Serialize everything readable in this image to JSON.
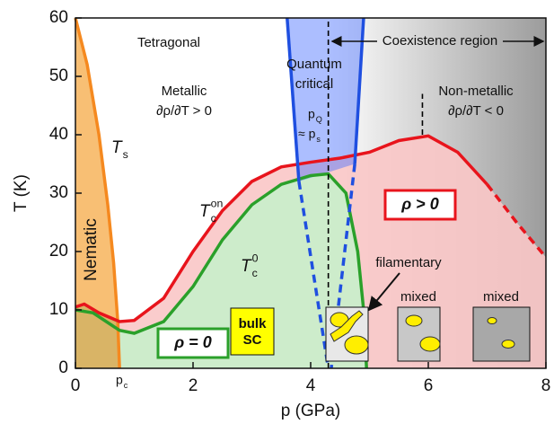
{
  "chart_data": {
    "type": "line",
    "x_label": "p (GPa)",
    "y_label": "T (K)",
    "xlim": [
      0,
      8
    ],
    "ylim": [
      0,
      60
    ],
    "xticks": [
      0,
      2,
      4,
      6,
      8
    ],
    "yticks": [
      0,
      10,
      20,
      30,
      40,
      50,
      60
    ],
    "series": [
      {
        "color": "#f5891f",
        "x": [
          0,
          0.2,
          0.4,
          0.55,
          0.65,
          0.72,
          0.75
        ],
        "values": [
          60,
          52,
          40,
          28,
          18,
          8,
          0
        ]
      },
      {
        "color": "#e8141c",
        "x": [
          0,
          0.15,
          0.4,
          0.75,
          1,
          1.5,
          2,
          2.5,
          3,
          3.5,
          4,
          4.5,
          5,
          5.5,
          6,
          6.5,
          7
        ],
        "values": [
          10.5,
          11,
          9.5,
          8,
          8.2,
          12,
          20,
          27,
          32,
          34.5,
          35.3,
          36,
          37,
          39,
          39.8,
          37,
          31.5
        ]
      },
      {
        "color": "#e8141c",
        "dash": true,
        "x": [
          7,
          7.5,
          8
        ],
        "values": [
          31.5,
          25,
          19
        ]
      },
      {
        "color": "#2aa02a",
        "x": [
          0,
          0.3,
          0.75,
          1,
          1.5,
          2,
          2.5,
          3,
          3.5,
          4,
          4.3,
          4.6,
          4.8,
          4.9,
          4.95
        ],
        "values": [
          10,
          9.5,
          6.5,
          6,
          8,
          14,
          22,
          28,
          31.5,
          33,
          33.3,
          30,
          20,
          10,
          0
        ]
      },
      {
        "color": "#1f4fe0",
        "x": [
          3.6,
          3.8
        ],
        "values": [
          60,
          32
        ]
      },
      {
        "color": "#1f4fe0",
        "dash": true,
        "x": [
          3.8,
          4.3
        ],
        "values": [
          32,
          0
        ]
      },
      {
        "color": "#1f4fe0",
        "x": [
          4.9,
          4.75
        ],
        "values": [
          60,
          35
        ]
      },
      {
        "color": "#1f4fe0",
        "dash": true,
        "x": [
          4.75,
          4.35
        ],
        "values": [
          35,
          0
        ]
      },
      {
        "color": "#000000",
        "dash": true,
        "x": [
          4.3,
          4.3
        ],
        "values": [
          0,
          60
        ]
      },
      {
        "color": "#000000",
        "dash": true,
        "x": [
          5.9,
          5.9
        ],
        "values": [
          40,
          47
        ]
      }
    ],
    "annotations": [
      {
        "text": "Tetragonal"
      },
      {
        "text": "Metallic"
      },
      {
        "text": "∂ρ/∂T > 0"
      },
      {
        "text": "Quantum"
      },
      {
        "text": "critical"
      },
      {
        "text": "p",
        "sub": "Q"
      },
      {
        "text": "≈ p",
        "sub": "s"
      },
      {
        "text": "Coexistence region"
      },
      {
        "text": "Non-metallic"
      },
      {
        "text": "∂ρ/∂T < 0"
      },
      {
        "text": "T",
        "sub": "s"
      },
      {
        "text": "T",
        "sub": "c",
        "sup": "on"
      },
      {
        "text": "T",
        "sub": "c",
        "sup": "0"
      },
      {
        "text": "Nematic"
      },
      {
        "text": "ρ > 0"
      },
      {
        "text": "ρ = 0"
      },
      {
        "text": "bulk"
      },
      {
        "text": "SC"
      },
      {
        "text": "filamentary"
      },
      {
        "text": "mixed"
      },
      {
        "text": "mixed"
      },
      {
        "text": "p",
        "sub": "c"
      }
    ]
  }
}
